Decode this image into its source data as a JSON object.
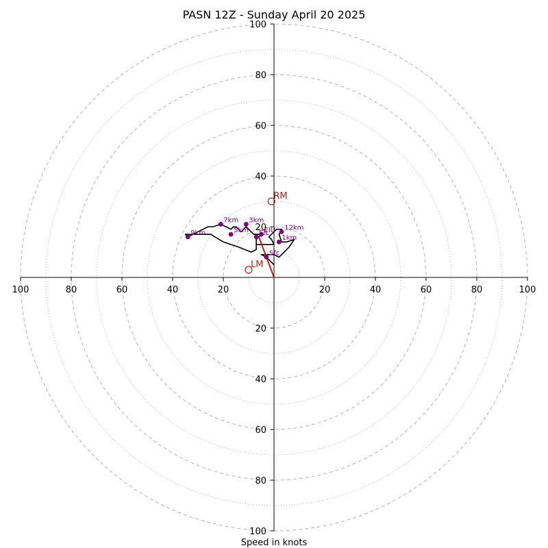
{
  "chart_data": {
    "type": "hodograph",
    "title": "PASN 12Z - Sunday April 20 2025",
    "xlabel": "Speed in knots",
    "xlim": [
      -100,
      100
    ],
    "ylim": [
      -100,
      100
    ],
    "rings_major": [
      20,
      40,
      60,
      80,
      100
    ],
    "rings_minor": [
      10,
      30,
      50,
      70,
      90
    ],
    "x_tick_labels": [
      "100",
      "80",
      "60",
      "40",
      "20",
      "20",
      "40",
      "60",
      "80",
      "100"
    ],
    "y_tick_labels_top": [
      "20",
      "40",
      "60",
      "80",
      "100"
    ],
    "y_tick_labels_bottom": [
      "20",
      "40",
      "60",
      "80",
      "100"
    ],
    "wind_trace": [
      [
        0,
        5
      ],
      [
        -3,
        8
      ],
      [
        -5,
        9
      ],
      [
        -3,
        9
      ],
      [
        0,
        9
      ],
      [
        2,
        8
      ],
      [
        4,
        10
      ],
      [
        6,
        12
      ],
      [
        8,
        15
      ],
      [
        5,
        14
      ],
      [
        3,
        14
      ],
      [
        2,
        17
      ],
      [
        3,
        19
      ],
      [
        1,
        19
      ],
      [
        0,
        18
      ],
      [
        -1,
        17
      ],
      [
        -2,
        16
      ],
      [
        -1,
        15
      ],
      [
        0,
        13
      ],
      [
        -3,
        13
      ],
      [
        -5,
        13
      ],
      [
        -7,
        13
      ],
      [
        -7,
        14
      ],
      [
        -7,
        15
      ],
      [
        -6,
        16
      ],
      [
        -5,
        17
      ],
      [
        -6,
        17
      ],
      [
        -8,
        17
      ],
      [
        -9,
        18
      ],
      [
        -10,
        19
      ],
      [
        -11,
        20
      ],
      [
        -11,
        20
      ],
      [
        -12,
        19
      ],
      [
        -13,
        18
      ],
      [
        -14,
        19
      ],
      [
        -15,
        20
      ],
      [
        -16,
        20
      ],
      [
        -17,
        19
      ],
      [
        -19,
        20
      ],
      [
        -21,
        21
      ],
      [
        -24,
        20
      ],
      [
        -26,
        20
      ],
      [
        -28,
        19
      ],
      [
        -30,
        18
      ],
      [
        -32,
        17
      ],
      [
        -34,
        16
      ],
      [
        -35,
        17
      ],
      [
        -34,
        17
      ],
      [
        -30,
        17
      ],
      [
        -25,
        17
      ],
      [
        -20,
        14
      ],
      [
        -14,
        12
      ],
      [
        -9,
        10
      ],
      [
        -7,
        11
      ],
      [
        -7,
        13
      ]
    ],
    "height_markers": [
      {
        "label": "Sfc",
        "u": -3,
        "v": 8
      },
      {
        "label": "1km",
        "u": 2,
        "v": 14
      },
      {
        "label": "3km",
        "u": -11,
        "v": 21
      },
      {
        "label": "5km",
        "u": -17,
        "v": 17
      },
      {
        "label": "7km",
        "u": -21,
        "v": 21
      },
      {
        "label": "9km",
        "u": -34,
        "v": 16
      },
      {
        "label": "12km",
        "u": 3,
        "v": 18
      },
      {
        "label": "EIL",
        "u": -7,
        "v": 16
      },
      {
        "label": "EIU",
        "u": -5,
        "v": 17
      }
    ],
    "shear_vector": {
      "from": [
        0,
        0
      ],
      "to": [
        -6,
        16
      ]
    },
    "storm_motion": [
      {
        "label": "RM",
        "u": -1,
        "v": 30
      },
      {
        "label": "LM",
        "u": -10,
        "v": 3
      }
    ],
    "colors": {
      "trace": "#000000",
      "markers": "#800080",
      "storm_motion": "#b22222",
      "shear": "#e00000",
      "grid": "#b0b0b0"
    }
  }
}
